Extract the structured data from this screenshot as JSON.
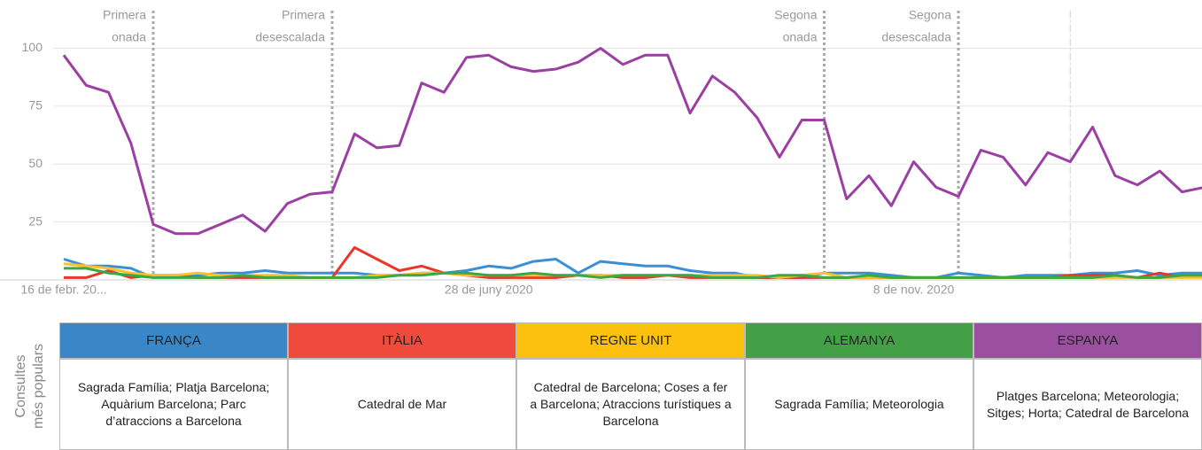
{
  "chart_data": {
    "type": "line",
    "categories": [
      "16 de febr. 20...",
      null,
      null,
      null,
      null,
      null,
      null,
      null,
      null,
      null,
      null,
      null,
      null,
      null,
      null,
      null,
      null,
      null,
      null,
      "28 de juny 2020",
      null,
      null,
      null,
      null,
      null,
      null,
      null,
      null,
      null,
      null,
      null,
      null,
      null,
      null,
      null,
      null,
      null,
      null,
      "8 de nov. 2020",
      null,
      null,
      null,
      null,
      null,
      null,
      null,
      null,
      null,
      null,
      null,
      null,
      null
    ],
    "ylim": [
      0,
      117
    ],
    "yticks": [
      25,
      50,
      75,
      100
    ],
    "grid": true,
    "annotations": [
      {
        "lines": [
          "Primera",
          "onada"
        ],
        "at": 4
      },
      {
        "lines": [
          "Primera",
          "desescalada"
        ],
        "at": 12
      },
      {
        "lines": [
          "Segona",
          "onada"
        ],
        "at": 34
      },
      {
        "lines": [
          "Segona",
          "desescalada"
        ],
        "at": 40
      }
    ],
    "reference_line": 45,
    "series": [
      {
        "name": "FRANÇA",
        "color": "#3a8fd6",
        "values": [
          9,
          6,
          6,
          5,
          1,
          2,
          2,
          3,
          3,
          4,
          3,
          3,
          3,
          3,
          2,
          2,
          3,
          3,
          4,
          6,
          5,
          8,
          9,
          3,
          8,
          7,
          6,
          6,
          4,
          3,
          3,
          1,
          1,
          1,
          3,
          3,
          3,
          2,
          1,
          1,
          3,
          2,
          1,
          2,
          2,
          2,
          3,
          3,
          4,
          2,
          3,
          3
        ]
      },
      {
        "name": "ITÀLIA",
        "color": "#e8362a",
        "values": [
          1,
          1,
          4,
          1,
          2,
          2,
          1,
          1,
          1,
          1,
          1,
          1,
          1,
          14,
          9,
          4,
          6,
          3,
          2,
          1,
          1,
          1,
          1,
          2,
          2,
          1,
          1,
          2,
          1,
          1,
          1,
          1,
          1,
          1,
          1,
          1,
          1,
          1,
          1,
          1,
          1,
          1,
          1,
          1,
          1,
          2,
          2,
          2,
          1,
          3,
          1,
          2
        ]
      },
      {
        "name": "REGNE UNIT",
        "color": "#fbc02d",
        "values": [
          7,
          6,
          5,
          3,
          2,
          2,
          3,
          2,
          2,
          2,
          2,
          1,
          1,
          1,
          2,
          2,
          3,
          3,
          2,
          2,
          2,
          2,
          2,
          2,
          2,
          2,
          2,
          2,
          2,
          2,
          2,
          2,
          1,
          2,
          3,
          1,
          1,
          1,
          1,
          1,
          1,
          1,
          1,
          1,
          1,
          1,
          1,
          1,
          1,
          1,
          1,
          1
        ]
      },
      {
        "name": "ALEMANYA",
        "color": "#3aa843",
        "values": [
          5,
          5,
          3,
          2,
          1,
          1,
          1,
          1,
          2,
          1,
          1,
          1,
          1,
          1,
          1,
          2,
          2,
          3,
          3,
          2,
          2,
          3,
          2,
          2,
          1,
          2,
          2,
          2,
          2,
          1,
          1,
          1,
          2,
          2,
          1,
          1,
          2,
          1,
          1,
          1,
          1,
          1,
          1,
          1,
          1,
          1,
          1,
          2,
          1,
          1,
          2,
          2
        ]
      },
      {
        "name": "ESPANYA",
        "color": "#9b3fa3",
        "values": [
          97,
          84,
          81,
          59,
          24,
          20,
          20,
          24,
          28,
          21,
          33,
          37,
          38,
          63,
          57,
          58,
          85,
          81,
          96,
          97,
          92,
          90,
          91,
          94,
          100,
          93,
          97,
          97,
          72,
          88,
          81,
          70,
          53,
          69,
          69,
          35,
          45,
          32,
          51,
          40,
          36,
          56,
          53,
          41,
          55,
          51,
          66,
          45,
          41,
          47,
          38,
          40
        ]
      }
    ]
  },
  "table": {
    "row_label": [
      "Consultes",
      "més populars"
    ],
    "header_colors": [
      "#3a87c8",
      "#ef4a3c",
      "#fcc10f",
      "#43a047",
      "#9b4f9f"
    ],
    "cells": [
      "Sagrada Família; Platja Barcelona; Aquàrium Barcelona; Parc d’atraccions a Barcelona",
      "Catedral de Mar",
      "Catedral de Barcelona; Coses a fer a Barcelona; Atraccions turístiques a Barcelona",
      "Sagrada Família; Meteorologia",
      "Platges Barcelona; Meteorologia; Sitges; Horta; Catedral de Barcelona"
    ]
  }
}
